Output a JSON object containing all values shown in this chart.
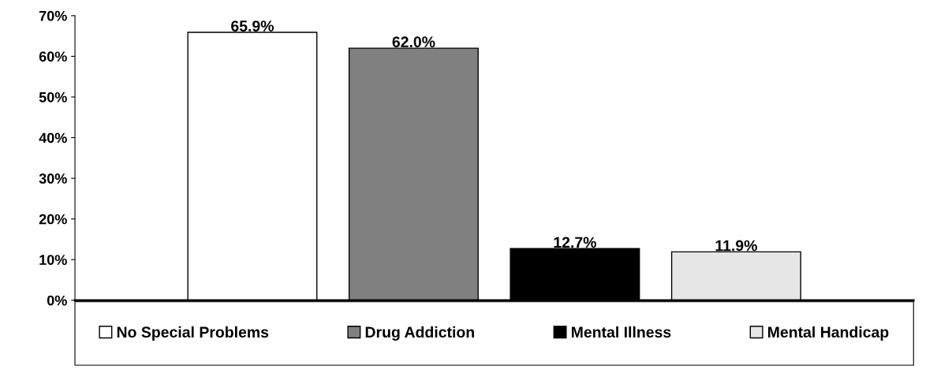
{
  "chart_data": {
    "type": "bar",
    "categories": [
      null
    ],
    "series": [
      {
        "name": "No Special Problems",
        "color": "#ffffff",
        "values": [
          65.9
        ]
      },
      {
        "name": "Drug Addiction",
        "color": "#808080",
        "values": [
          62.0
        ]
      },
      {
        "name": "Mental Illness",
        "color": "#000000",
        "values": [
          12.7
        ]
      },
      {
        "name": "Mental Handicap",
        "color": "#e6e6e6",
        "values": [
          11.9
        ]
      }
    ],
    "value_labels": [
      [
        "65.9%"
      ],
      [
        "62.0%"
      ],
      [
        "12.7%"
      ],
      [
        "11.9%"
      ]
    ],
    "ylim": [
      0,
      70
    ],
    "yticks": [
      {
        "value": 0,
        "label": "0%"
      },
      {
        "value": 10,
        "label": "10%"
      },
      {
        "value": 20,
        "label": "20%"
      },
      {
        "value": 30,
        "label": "30%"
      },
      {
        "value": 40,
        "label": "40%"
      },
      {
        "value": 50,
        "label": "50%"
      },
      {
        "value": 60,
        "label": "60%"
      },
      {
        "value": 70,
        "label": "70%"
      }
    ],
    "grid": false,
    "legend": "bottom"
  }
}
